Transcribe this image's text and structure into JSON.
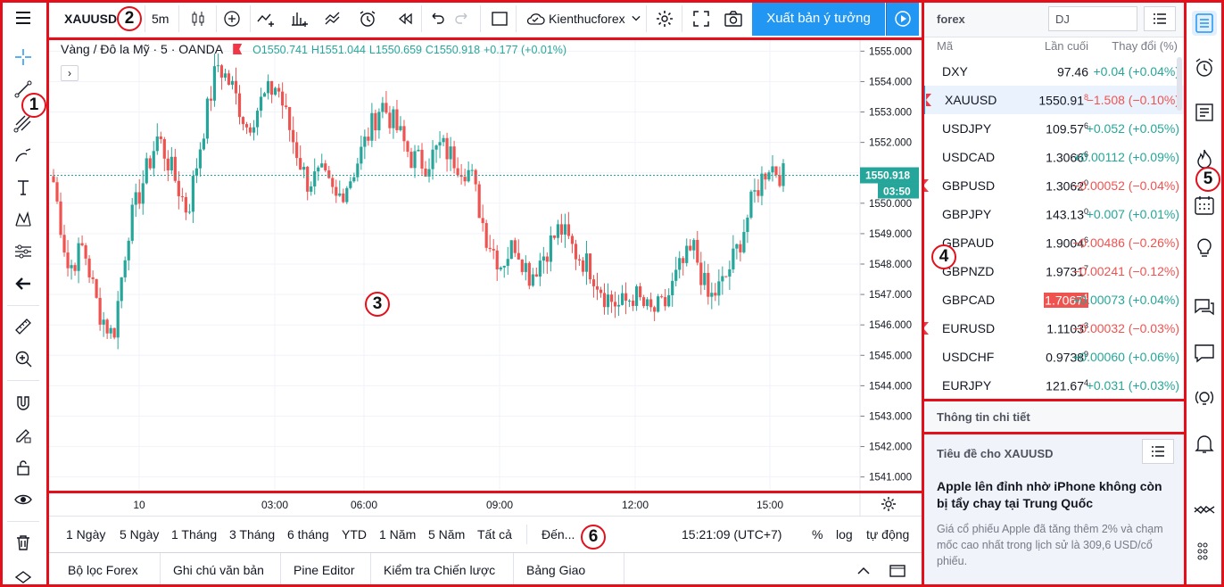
{
  "toolbar": {
    "symbol": "XAUUSD",
    "interval": "5m",
    "layout_name": "Kienthucforex",
    "publish_label": "Xuất bản ý tưởng"
  },
  "legend": {
    "title": "Vàng / Đô la Mỹ · 5 · OANDA",
    "open": "O1550.741",
    "high": "H1551.044",
    "low": "L1550.659",
    "close": "C1550.918",
    "change": "+0.177 (+0.01%)"
  },
  "chart_data": {
    "type": "candlestick",
    "y_ticks": [
      "1555.000",
      "1554.000",
      "1553.000",
      "1552.000",
      "1551.000",
      "1550.000",
      "1549.000",
      "1548.000",
      "1547.000",
      "1546.000",
      "1545.000",
      "1544.000",
      "1543.000",
      "1542.000",
      "1541.000"
    ],
    "ylim": [
      1540.55,
      1555.45
    ],
    "x_ticks": [
      "10",
      "03:00",
      "06:00",
      "09:00",
      "12:00",
      "15:00"
    ],
    "current_price": "1550.918",
    "countdown": "03:50",
    "close_path": [
      1550.7,
      1547.8,
      1548.6,
      1546.5,
      1545.6,
      1549.1,
      1550.7,
      1552.2,
      1551.0,
      1549.7,
      1552.3,
      1554.6,
      1553.8,
      1552.5,
      1553.4,
      1553.9,
      1552.2,
      1550.7,
      1550.9,
      1550.1,
      1550.9,
      1552.1,
      1553.3,
      1552.5,
      1551.5,
      1551.3,
      1551.9,
      1551.4,
      1551.0,
      1549.0,
      1548.0,
      1548.7,
      1547.6,
      1548.4,
      1549.2,
      1548.4,
      1547.9,
      1547.0,
      1546.6,
      1547.0,
      1546.4,
      1546.6,
      1547.8,
      1548.5,
      1546.8,
      1547.4,
      1548.6,
      1550.2,
      1551.3,
      1550.9
    ],
    "candle_colors": {
      "up": "#26a69a",
      "down": "#ef5350"
    }
  },
  "time_bar": {
    "ranges": [
      "1 Ngày",
      "5 Ngày",
      "1 Tháng",
      "3 Tháng",
      "6 tháng",
      "YTD",
      "1 Năm",
      "5 Năm",
      "Tất cả"
    ],
    "goto": "Đến...",
    "clock": "15:21:09 (UTC+7)",
    "percent": "%",
    "log": "log",
    "auto": "tự động"
  },
  "bottom_tabs": [
    "Bộ lọc Forex",
    "Ghi chú văn bản",
    "Pine Editor",
    "Kiểm tra Chiến lược",
    "Bảng Giao dịch"
  ],
  "watchlist": {
    "title": "forex",
    "search_value": "DJ",
    "headers": {
      "symbol": "Mã",
      "last": "Lần cuối",
      "change": "Thay đổi (%)"
    },
    "rows": [
      {
        "symbol": "DXY",
        "last": "97.46",
        "last_sup": "",
        "change": "+0.04 (+0.04%)",
        "dir": "up",
        "flag": false
      },
      {
        "symbol": "XAUUSD",
        "last": "1550.91",
        "last_sup": "8",
        "change": "−1.508 (−0.10%)",
        "dir": "dn",
        "flag": true
      },
      {
        "symbol": "USDJPY",
        "last": "109.57",
        "last_sup": "6",
        "change": "+0.052 (+0.05%)",
        "dir": "up",
        "flag": false
      },
      {
        "symbol": "USDCAD",
        "last": "1.3066",
        "last_sup": "6",
        "change": "+0.00112 (+0.09%)",
        "dir": "up",
        "flag": false
      },
      {
        "symbol": "GBPUSD",
        "last": "1.3062",
        "last_sup": "0",
        "change": "−0.00052 (−0.04%)",
        "dir": "dn",
        "flag": true
      },
      {
        "symbol": "GBPJPY",
        "last": "143.13",
        "last_sup": "0",
        "change": "+0.007 (+0.01%)",
        "dir": "up",
        "flag": false
      },
      {
        "symbol": "GBPAUD",
        "last": "1.9004",
        "last_sup": "6",
        "change": "−0.00486 (−0.26%)",
        "dir": "dn",
        "flag": false
      },
      {
        "symbol": "GBPNZD",
        "last": "1.9731",
        "last_sup": "7",
        "change": "−0.00241 (−0.12%)",
        "dir": "dn",
        "flag": false
      },
      {
        "symbol": "GBPCAD",
        "last": "1.7067",
        "last_sup": "4",
        "change": "+0.00073 (+0.04%)",
        "dir": "up",
        "flag": false
      },
      {
        "symbol": "EURUSD",
        "last": "1.1103",
        "last_sup": "3",
        "change": "−0.00032 (−0.03%)",
        "dir": "dn",
        "flag": true
      },
      {
        "symbol": "USDCHF",
        "last": "0.9738",
        "last_sup": "9",
        "change": "+0.00060 (+0.06%)",
        "dir": "up",
        "flag": false
      },
      {
        "symbol": "EURJPY",
        "last": "121.67",
        "last_sup": "4",
        "change": "+0.031 (+0.03%)",
        "dir": "up",
        "flag": false
      }
    ]
  },
  "details": {
    "header": "Thông tin chi tiết",
    "news_title": "Tiêu đề cho XAUUSD",
    "headline": "Apple lên đỉnh nhờ iPhone không còn bị tẩy chay tại Trung Quốc",
    "body": "Giá cổ phiếu Apple đã tăng thêm 2% và chạm mốc cao nhất trong lịch sử là 309,6 USD/cổ phiếu."
  },
  "annotations": [
    "1",
    "2",
    "3",
    "4",
    "5",
    "6"
  ],
  "colors": {
    "accent": "#2196f3",
    "frame": "#e3101b",
    "up": "#26a69a",
    "down": "#ef5350"
  }
}
